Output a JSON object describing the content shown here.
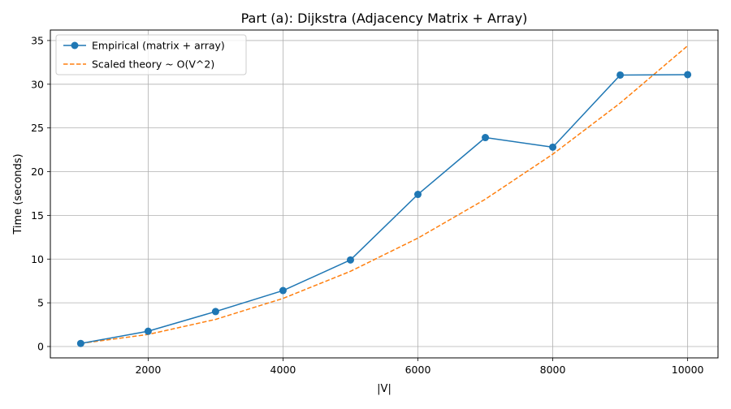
{
  "chart_data": {
    "type": "line",
    "title": "Part (a): Dijkstra (Adjacency Matrix + Array)",
    "xlabel": "|V|",
    "ylabel": "Time (seconds)",
    "xlim": [
      550,
      10450
    ],
    "ylim": [
      -1.3,
      36.2
    ],
    "xticks": [
      2000,
      4000,
      6000,
      8000,
      10000
    ],
    "xtick_labels": [
      "2000",
      "4000",
      "6000",
      "8000",
      "10000"
    ],
    "yticks": [
      0,
      5,
      10,
      15,
      20,
      25,
      30,
      35
    ],
    "ytick_labels": [
      "0",
      "5",
      "10",
      "15",
      "20",
      "25",
      "30",
      "35"
    ],
    "grid": true,
    "legend_position": "upper-left",
    "x": [
      1000,
      2000,
      3000,
      4000,
      5000,
      6000,
      7000,
      8000,
      9000,
      10000
    ],
    "series": [
      {
        "name": "Empirical (matrix + array)",
        "style": "solid-with-markers",
        "color": "#1f77b4",
        "values": [
          0.35,
          1.75,
          4.0,
          6.4,
          9.9,
          17.4,
          23.9,
          22.8,
          31.05,
          31.1
        ]
      },
      {
        "name": "Scaled theory ~ O(V^2)",
        "style": "dashed",
        "color": "#ff7f0e",
        "values": [
          0.35,
          1.38,
          3.1,
          5.5,
          8.6,
          12.4,
          16.85,
          22.0,
          27.85,
          34.4
        ]
      }
    ]
  }
}
